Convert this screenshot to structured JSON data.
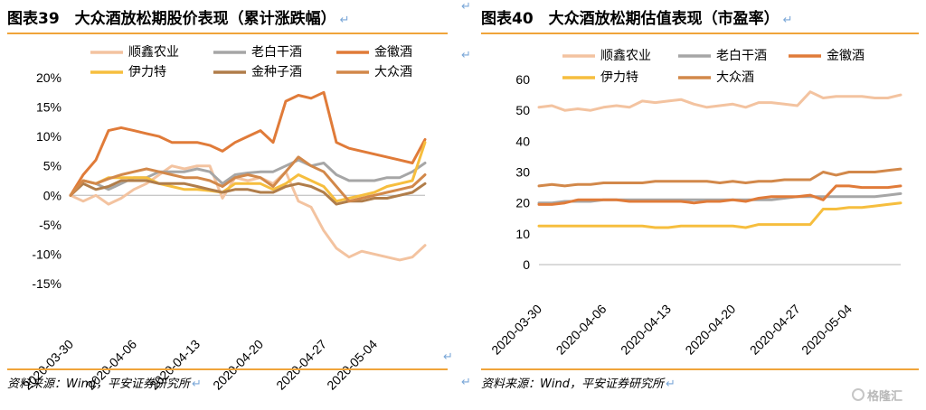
{
  "figures": [
    {
      "title": "图表39　大众酒放松期股价表现（累计涨跌幅）",
      "source": "资料来源：Wind，平安证券研究所"
    },
    {
      "title": "图表40　大众酒放松期估值表现（市盈率）",
      "source": "资料来源：Wind，平安证券研究所"
    }
  ],
  "return_mark": "↵",
  "watermark": "格隆汇",
  "chart_data": [
    {
      "type": "line",
      "title": "图表39　大众酒放松期股价表现（累计涨跌幅）",
      "xlabel": "",
      "ylabel": "",
      "ylim": [
        -15,
        20
      ],
      "yticks": [
        "-15%",
        "-10%",
        "-5%",
        "0%",
        "5%",
        "10%",
        "15%",
        "20%"
      ],
      "ytick_values": [
        -15,
        -10,
        -5,
        0,
        5,
        10,
        15,
        20
      ],
      "x": [
        "2020-03-30",
        "2020-03-31",
        "2020-04-01",
        "2020-04-02",
        "2020-04-03",
        "2020-04-06",
        "2020-04-07",
        "2020-04-08",
        "2020-04-09",
        "2020-04-10",
        "2020-04-13",
        "2020-04-14",
        "2020-04-15",
        "2020-04-16",
        "2020-04-17",
        "2020-04-20",
        "2020-04-21",
        "2020-04-22",
        "2020-04-23",
        "2020-04-24",
        "2020-04-27",
        "2020-04-28",
        "2020-04-29",
        "2020-04-30",
        "2020-05-04",
        "2020-05-05",
        "2020-05-06",
        "2020-05-07",
        "2020-05-08"
      ],
      "xtick_labels": [
        "2020-03-30",
        "2020-04-06",
        "2020-04-13",
        "2020-04-20",
        "2020-04-27",
        "2020-05-04"
      ],
      "legend_position": "top",
      "series": [
        {
          "name": "顺鑫农业",
          "color": "#f3c3a0",
          "values": [
            0,
            -1,
            0,
            -1.5,
            -0.5,
            1,
            2,
            3.5,
            5,
            4.5,
            5,
            5,
            -0.5,
            3,
            2.5,
            3,
            2,
            4,
            -1,
            -2,
            -6,
            -9,
            -10.5,
            -9.5,
            -10,
            -10.5,
            -11,
            -10.5,
            -8.5
          ]
        },
        {
          "name": "老白干酒",
          "color": "#a6a6a6",
          "values": [
            0,
            2.5,
            2,
            1,
            2,
            3,
            3,
            4,
            4,
            4,
            4.5,
            4,
            2,
            3.5,
            3.8,
            4,
            4,
            5,
            6,
            5,
            5.5,
            3.5,
            2.5,
            2.5,
            2.5,
            3,
            3,
            4,
            5.5
          ]
        },
        {
          "name": "金徽酒",
          "color": "#e07b39",
          "values": [
            0,
            3.5,
            6,
            11,
            11.5,
            11,
            10.5,
            10,
            9,
            9,
            9,
            8.5,
            7.5,
            9,
            10,
            11,
            9,
            16,
            17,
            16.5,
            17.5,
            9,
            8,
            7.5,
            7,
            6.5,
            6,
            5.5,
            9.5
          ]
        },
        {
          "name": "伊力特",
          "color": "#f6be3e",
          "values": [
            0,
            2.5,
            2,
            3,
            3,
            3,
            3,
            2,
            1.5,
            1,
            1,
            0.8,
            0.5,
            2,
            2,
            2,
            1,
            2,
            3.5,
            2.5,
            1.5,
            -1,
            -0.5,
            0,
            0.5,
            1.5,
            2,
            2.5,
            9
          ]
        },
        {
          "name": "金种子酒",
          "color": "#b07d4a",
          "values": [
            0,
            2,
            1,
            1.5,
            2.5,
            2.5,
            2.5,
            2,
            2,
            2,
            1.5,
            1,
            0.5,
            1,
            1,
            0.5,
            0.5,
            1.5,
            2,
            1.5,
            0.5,
            -1.5,
            -1,
            -1,
            -0.5,
            -0.5,
            0,
            0.5,
            2
          ]
        },
        {
          "name": "大众酒",
          "color": "#d2884a",
          "values": [
            0,
            2.5,
            2,
            2.8,
            3.5,
            4,
            4.5,
            4,
            3.5,
            3,
            3,
            2.5,
            1.5,
            3,
            3.5,
            3,
            1.5,
            4,
            6.5,
            5,
            4,
            1.5,
            -1,
            -0.5,
            0,
            0.5,
            1,
            1.5,
            3.5
          ]
        }
      ]
    },
    {
      "type": "line",
      "title": "图表40　大众酒放松期估值表现（市盈率）",
      "xlabel": "",
      "ylabel": "",
      "ylim": [
        0,
        60
      ],
      "yticks": [
        "0",
        "10",
        "20",
        "30",
        "40",
        "50",
        "60"
      ],
      "ytick_values": [
        0,
        10,
        20,
        30,
        40,
        50,
        60
      ],
      "x": [
        "2020-03-30",
        "2020-03-31",
        "2020-04-01",
        "2020-04-02",
        "2020-04-03",
        "2020-04-06",
        "2020-04-07",
        "2020-04-08",
        "2020-04-09",
        "2020-04-10",
        "2020-04-13",
        "2020-04-14",
        "2020-04-15",
        "2020-04-16",
        "2020-04-17",
        "2020-04-20",
        "2020-04-21",
        "2020-04-22",
        "2020-04-23",
        "2020-04-24",
        "2020-04-27",
        "2020-04-28",
        "2020-04-29",
        "2020-04-30",
        "2020-05-04",
        "2020-05-05",
        "2020-05-06",
        "2020-05-07",
        "2020-05-08"
      ],
      "xtick_labels": [
        "2020-03-30",
        "2020-04-06",
        "2020-04-13",
        "2020-04-20",
        "2020-04-27",
        "2020-05-04"
      ],
      "legend_position": "top",
      "series": [
        {
          "name": "顺鑫农业",
          "color": "#f3c3a0",
          "values": [
            51,
            51.5,
            50,
            50.5,
            50,
            51,
            51.5,
            51,
            53,
            52.5,
            53,
            53.5,
            52,
            51,
            51.5,
            52,
            51,
            52.5,
            52.5,
            52,
            51.5,
            56,
            54,
            54.5,
            54.5,
            54.5,
            54,
            54,
            55
          ]
        },
        {
          "name": "老白干酒",
          "color": "#a6a6a6",
          "values": [
            20,
            20,
            20.5,
            20.5,
            20.5,
            21,
            21,
            21,
            21,
            21,
            21,
            21,
            21,
            21,
            21,
            21,
            21,
            21,
            21,
            21.5,
            22,
            22,
            22,
            22,
            22,
            22,
            22,
            22.5,
            23
          ]
        },
        {
          "name": "金徽酒",
          "color": "#e07b39",
          "values": [
            19.5,
            19.5,
            20,
            21,
            21,
            21,
            21,
            20.5,
            20.5,
            20.5,
            20.5,
            20.5,
            20,
            20.5,
            20.5,
            21,
            20.5,
            21.5,
            22,
            22,
            22,
            22.5,
            21,
            25.5,
            25.5,
            25,
            25,
            25,
            25.5
          ]
        },
        {
          "name": "伊力特",
          "color": "#f6be3e",
          "values": [
            12.5,
            12.5,
            12.5,
            12.5,
            12.5,
            12.5,
            12.5,
            12.5,
            12.5,
            12,
            12,
            12.5,
            12.5,
            12.5,
            12.5,
            12.5,
            12,
            13,
            13,
            13,
            13,
            13,
            18,
            18,
            18.5,
            18.5,
            19,
            19.5,
            20
          ]
        },
        {
          "name": "大众酒",
          "color": "#d2884a",
          "values": [
            25.5,
            26,
            25.5,
            26,
            26,
            26.5,
            26.5,
            26.5,
            26.5,
            27,
            27,
            27,
            27,
            27,
            26.5,
            27,
            26.5,
            27,
            27,
            27.5,
            27.5,
            27.5,
            30,
            29,
            30,
            30,
            30,
            30.5,
            31
          ]
        }
      ]
    }
  ]
}
